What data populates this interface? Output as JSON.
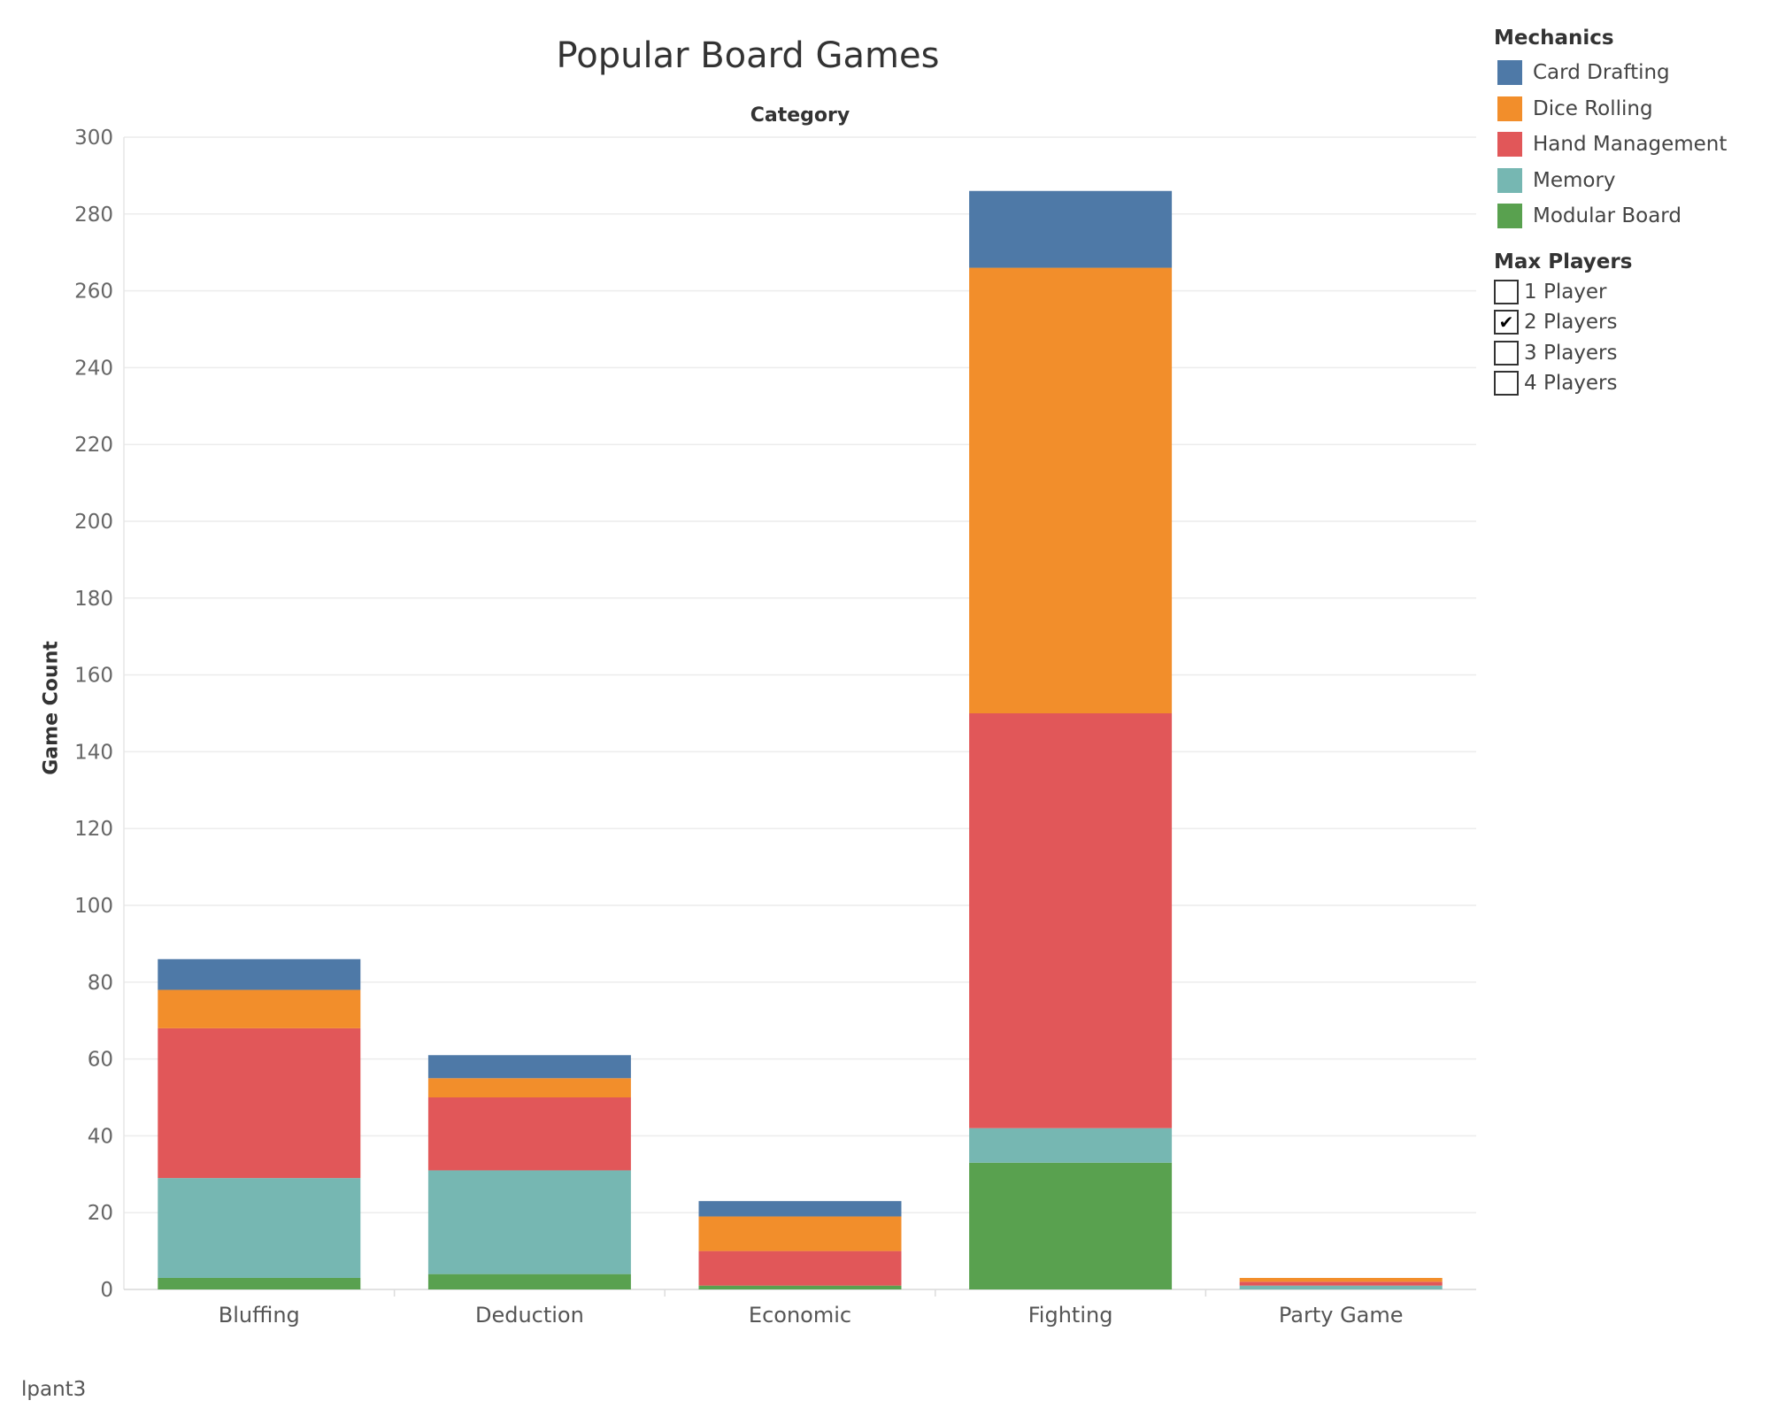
{
  "chart_data": {
    "type": "bar",
    "stacked": true,
    "title": "Popular Board Games",
    "column_header": "Category",
    "ylabel": "Game Count",
    "xlabel": "",
    "ylim": [
      0,
      300
    ],
    "yticks": [
      0,
      20,
      40,
      60,
      80,
      100,
      120,
      140,
      160,
      180,
      200,
      220,
      240,
      260,
      280,
      300
    ],
    "grid": true,
    "legend_placement": "right",
    "categories": [
      "Bluffing",
      "Deduction",
      "Economic",
      "Fighting",
      "Party Game"
    ],
    "series": [
      {
        "name": "Modular Board",
        "color": "#59a14f",
        "values": [
          3,
          4,
          1,
          33,
          0
        ]
      },
      {
        "name": "Memory",
        "color": "#76b7b2",
        "values": [
          26,
          27,
          0,
          9,
          1
        ]
      },
      {
        "name": "Hand Management",
        "color": "#e15759",
        "values": [
          39,
          19,
          9,
          108,
          1
        ]
      },
      {
        "name": "Dice Rolling",
        "color": "#f28e2b",
        "values": [
          10,
          5,
          9,
          116,
          1
        ]
      },
      {
        "name": "Card Drafting",
        "color": "#4e79a7",
        "values": [
          8,
          6,
          4,
          20,
          0
        ]
      }
    ]
  },
  "legend": {
    "title": "Mechanics",
    "items": [
      {
        "label": "Card Drafting",
        "color": "#4e79a7"
      },
      {
        "label": "Dice Rolling",
        "color": "#f28e2b"
      },
      {
        "label": "Hand Management",
        "color": "#e15759"
      },
      {
        "label": "Memory",
        "color": "#76b7b2"
      },
      {
        "label": "Modular Board",
        "color": "#59a14f"
      }
    ]
  },
  "filter": {
    "title": "Max Players",
    "items": [
      {
        "label": "1 Player",
        "checked": false
      },
      {
        "label": "2 Players",
        "checked": true
      },
      {
        "label": "3 Players",
        "checked": false
      },
      {
        "label": "4 Players",
        "checked": false
      }
    ]
  },
  "footer": "lpant3"
}
